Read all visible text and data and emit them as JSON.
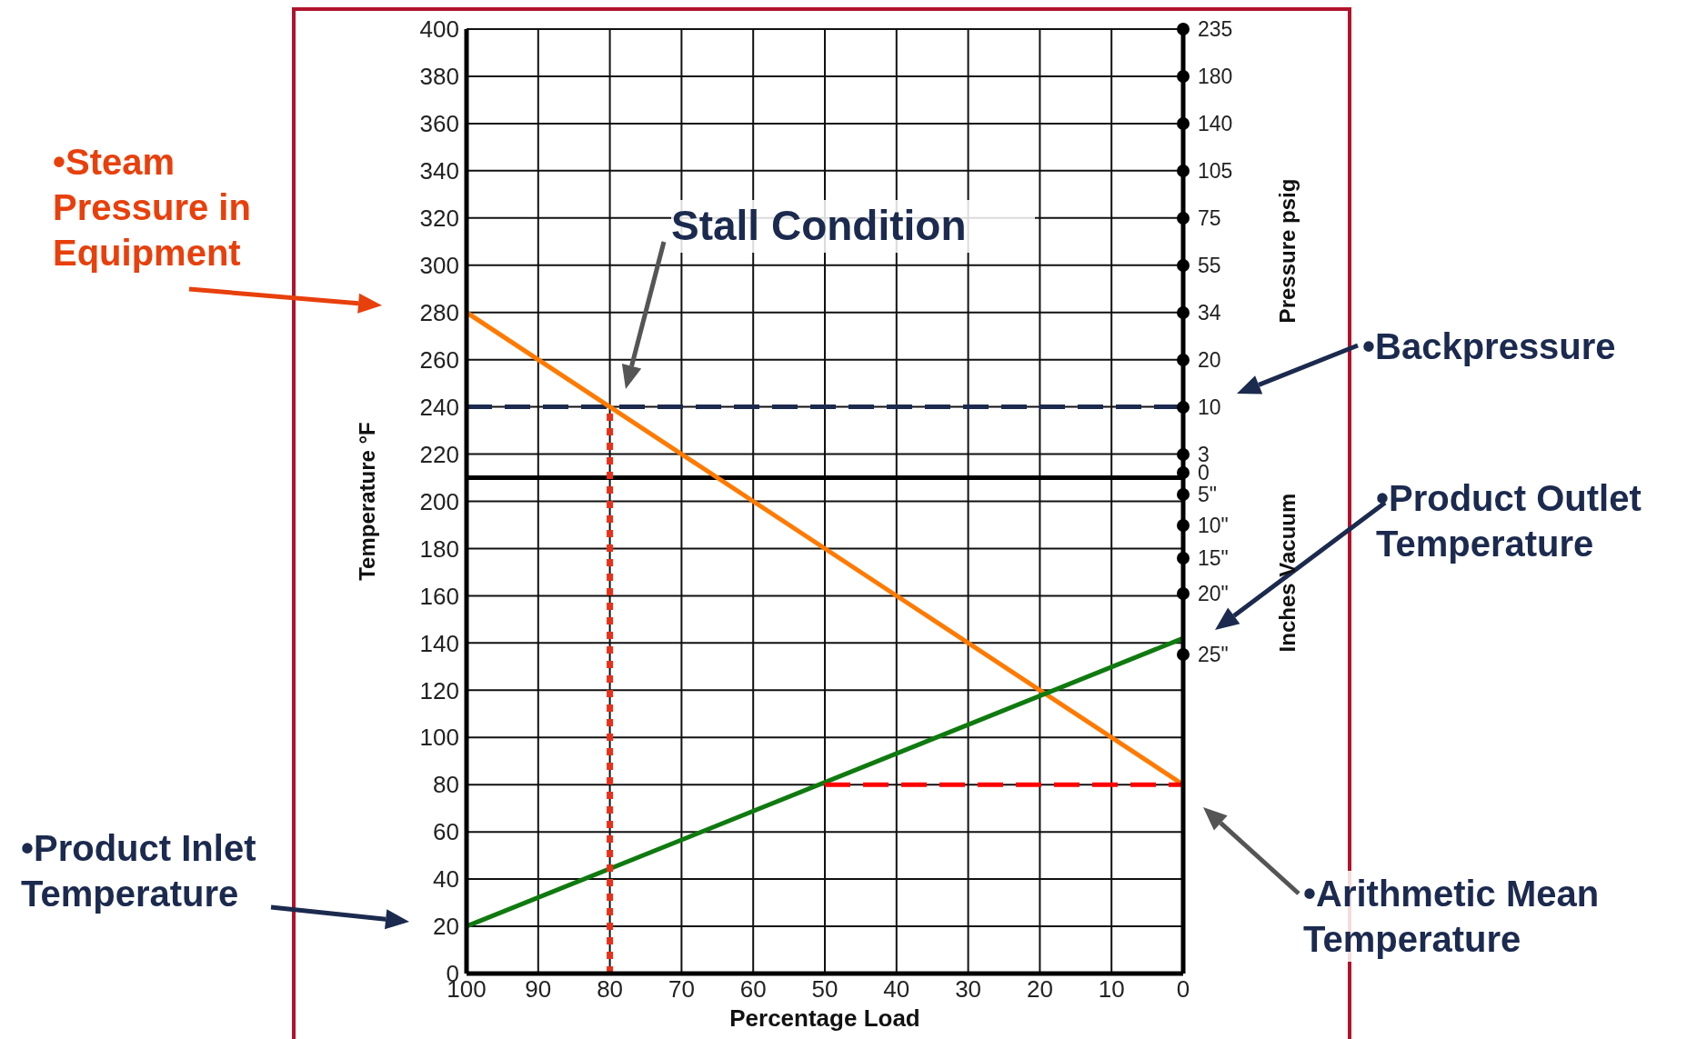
{
  "chart_data": {
    "type": "line",
    "xlabel": "Percentage Load",
    "ylabel": "Temperature °F",
    "y2label": "Pressure psig",
    "xlim": [
      100,
      0
    ],
    "xticks": [
      100,
      90,
      80,
      70,
      60,
      50,
      40,
      30,
      20,
      10,
      0
    ],
    "ylim": [
      0,
      400
    ],
    "yticks": [
      0,
      20,
      40,
      60,
      80,
      100,
      120,
      140,
      160,
      180,
      200,
      220,
      240,
      260,
      280,
      300,
      320,
      340,
      360,
      380,
      400
    ],
    "grid": true,
    "marker": "none",
    "series": [
      {
        "color": "#ff7a00",
        "x": [
          100,
          0
        ],
        "values": [
          280,
          80
        ]
      },
      {
        "color": "#0f7a0f",
        "x": [
          100,
          0
        ],
        "values": [
          20,
          142
        ]
      },
      {
        "color": "#e8301a",
        "x": [
          80,
          80
        ],
        "values": [
          0,
          240
        ],
        "line_style": "dotted"
      },
      {
        "color": "#ff0000",
        "x": [
          50,
          0
        ],
        "values": [
          80,
          80
        ],
        "line_style": "dashed"
      }
    ],
    "ref_lines": [
      {
        "axis": "y",
        "value": 240,
        "color": "#1b2a4e",
        "line_style": "dashed"
      },
      {
        "axis": "y",
        "value": 210,
        "color": "#000000",
        "line_style": "solid"
      }
    ],
    "annotations": [
      "•Steam Pressure in Equipment",
      "Stall Condition",
      "•Backpressure",
      "•Product Outlet Temperature",
      "•Product Inlet Temperature",
      "•Arithmetic Mean Temperature",
      "Inches Vacuum",
      "235",
      "180",
      "140",
      "105",
      "75",
      "55",
      "34",
      "20",
      "10",
      "3",
      "0",
      "5\"",
      "10\"",
      "15\"",
      "20\"",
      "25\""
    ]
  }
}
